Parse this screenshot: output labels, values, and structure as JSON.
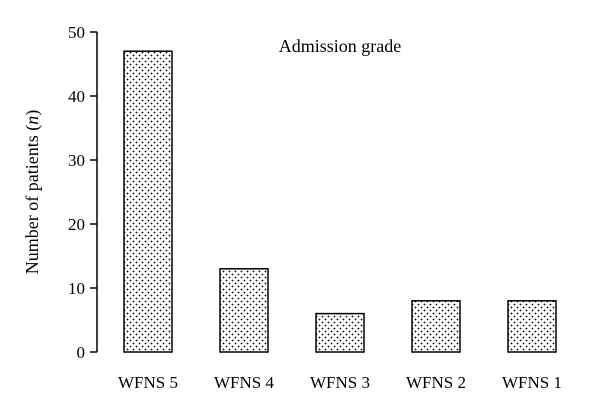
{
  "chart_data": {
    "type": "bar",
    "title": "Admission grade",
    "xlabel": "",
    "ylabel": "Number of patients (",
    "ylabel_var": "n",
    "ylabel_end": ")",
    "categories": [
      "WFNS 5",
      "WFNS 4",
      "WFNS 3",
      "WFNS 2",
      "WFNS 1"
    ],
    "values": [
      47,
      13,
      6,
      8,
      8
    ],
    "ylim": [
      0,
      50
    ],
    "yticks": [
      0,
      10,
      20,
      30,
      40,
      50
    ],
    "grid": false,
    "bar_fill": "dotted",
    "colors": {
      "stroke": "#000000",
      "background": "#ffffff"
    }
  }
}
